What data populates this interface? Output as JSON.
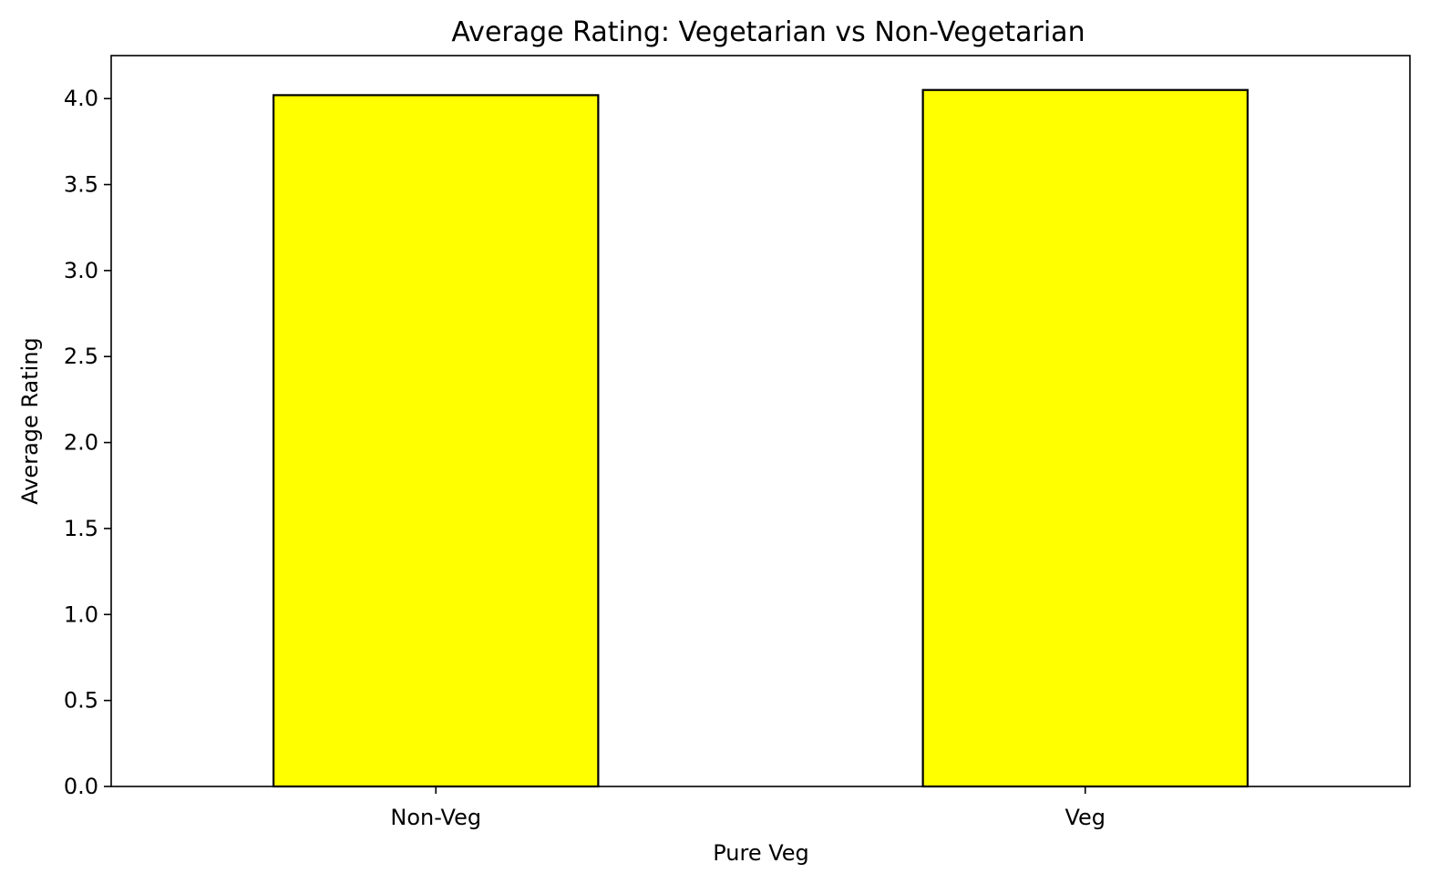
{
  "chart_data": {
    "type": "bar",
    "title": "Average Rating: Vegetarian vs Non-Vegetarian",
    "xlabel": "Pure Veg",
    "ylabel": "Average Rating",
    "categories": [
      "Non-Veg",
      "Veg"
    ],
    "values": [
      4.02,
      4.05
    ],
    "ylim": [
      0,
      4.25
    ],
    "yticks": [
      0.0,
      0.5,
      1.0,
      1.5,
      2.0,
      2.5,
      3.0,
      3.5,
      4.0
    ],
    "ytick_labels": [
      "0.0",
      "0.5",
      "1.0",
      "1.5",
      "2.0",
      "2.5",
      "3.0",
      "3.5",
      "4.0"
    ],
    "grid": false,
    "legend": "none",
    "colors": {
      "bar_fill": "#ffff00",
      "bar_edge": "#000000",
      "axes": "#000000",
      "background": "#ffffff"
    }
  }
}
